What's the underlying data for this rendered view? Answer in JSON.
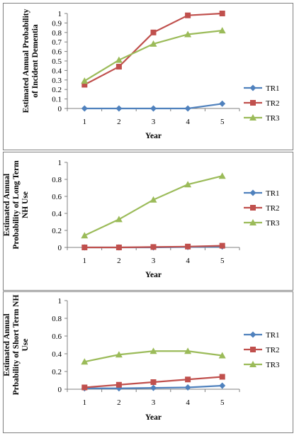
{
  "colors": {
    "TR1": "#4f81bd",
    "TR2": "#c0504d",
    "TR3": "#9bbb59"
  },
  "chart_data": [
    {
      "type": "line",
      "x": [
        1,
        2,
        3,
        4,
        5
      ],
      "xlabel": "Year",
      "ylabel": [
        "Estimated Annual Probability",
        "of Incident Dementia"
      ],
      "ylim": [
        0,
        1
      ],
      "yticks": [
        0,
        0.1,
        0.2,
        0.3,
        0.4,
        0.5,
        0.6,
        0.7,
        0.8,
        0.9,
        1
      ],
      "ytick_labels": [
        "0",
        "0.1",
        "0.2",
        "0.3",
        "0.4",
        "0.5",
        "0.6",
        "0.7",
        "0.8",
        "0.9",
        "1"
      ],
      "legend_position": "right",
      "grid": false,
      "series": [
        {
          "name": "TR1",
          "marker": "diamond",
          "values": [
            0,
            0,
            0,
            0,
            0.05
          ]
        },
        {
          "name": "TR2",
          "marker": "square",
          "values": [
            0.25,
            0.44,
            0.8,
            0.98,
            1.0
          ]
        },
        {
          "name": "TR3",
          "marker": "triangle",
          "values": [
            0.29,
            0.51,
            0.68,
            0.78,
            0.82
          ]
        }
      ]
    },
    {
      "type": "line",
      "x": [
        1,
        2,
        3,
        4,
        5
      ],
      "xlabel": "Year",
      "ylabel": [
        "Estimated Annual",
        "Probability of Long Term",
        "NH Use"
      ],
      "ylim": [
        0,
        1
      ],
      "yticks": [
        0,
        0.2,
        0.4,
        0.6,
        0.8,
        1
      ],
      "ytick_labels": [
        "0",
        "0.2",
        "0.4",
        "0.6",
        "0.8",
        "1"
      ],
      "legend_position": "right",
      "grid": false,
      "series": [
        {
          "name": "TR1",
          "marker": "diamond",
          "values": [
            0,
            0,
            0,
            0.005,
            0.01
          ]
        },
        {
          "name": "TR2",
          "marker": "square",
          "values": [
            0,
            0,
            0.005,
            0.01,
            0.02
          ]
        },
        {
          "name": "TR3",
          "marker": "triangle",
          "values": [
            0.14,
            0.33,
            0.56,
            0.74,
            0.84
          ]
        }
      ]
    },
    {
      "type": "line",
      "x": [
        1,
        2,
        3,
        4,
        5
      ],
      "xlabel": "Year",
      "ylabel": [
        "Estimated Annual",
        "Prbability of Short Term NH",
        "Use"
      ],
      "ylim": [
        0,
        1
      ],
      "yticks": [
        0,
        0.2,
        0.4,
        0.6,
        0.8,
        1
      ],
      "ytick_labels": [
        "0",
        "0.2",
        "0.4",
        "0.6",
        "0.8",
        "1"
      ],
      "legend_position": "right",
      "grid": false,
      "series": [
        {
          "name": "TR1",
          "marker": "diamond",
          "values": [
            0.01,
            0.01,
            0.015,
            0.02,
            0.04
          ]
        },
        {
          "name": "TR2",
          "marker": "square",
          "values": [
            0.02,
            0.05,
            0.08,
            0.11,
            0.14
          ]
        },
        {
          "name": "TR3",
          "marker": "triangle",
          "values": [
            0.31,
            0.39,
            0.43,
            0.43,
            0.38
          ]
        }
      ]
    }
  ]
}
